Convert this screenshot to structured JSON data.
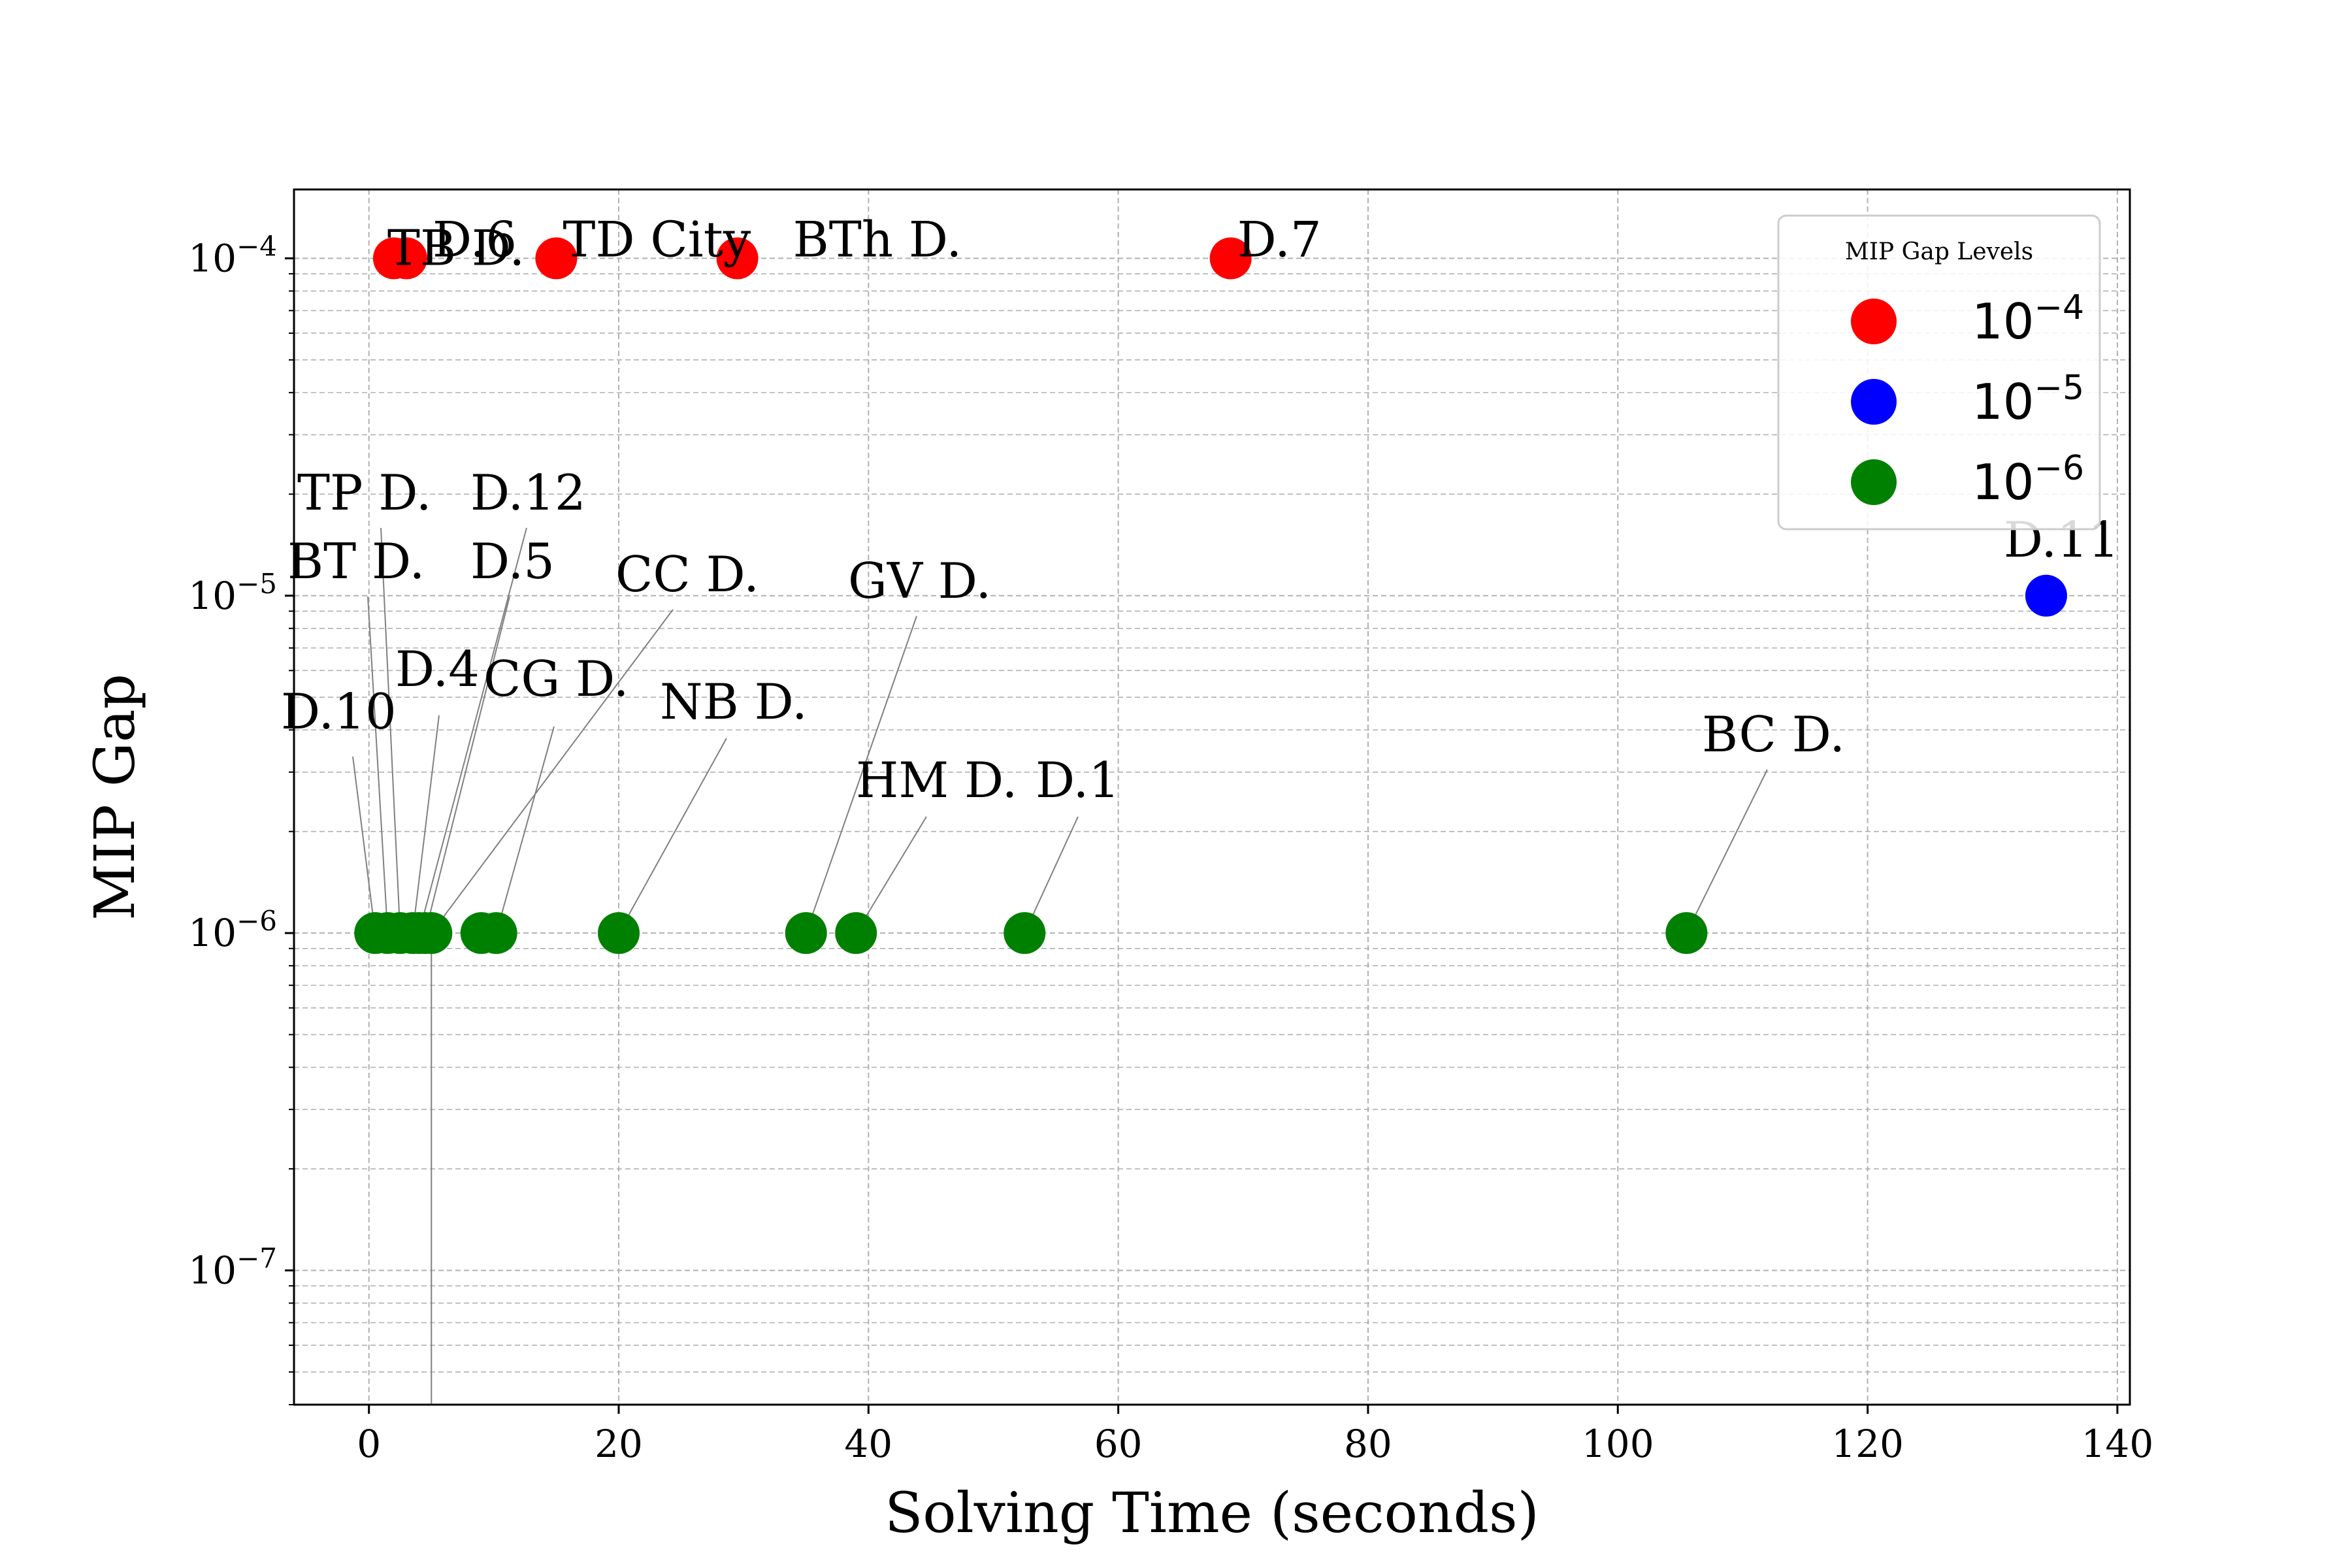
{
  "chart_data": {
    "type": "scatter",
    "xlabel": "Solving Time (seconds)",
    "ylabel": "MIP Gap",
    "y_scale": "log",
    "xlim": [
      -6,
      141
    ],
    "ylim": [
      4e-08,
      0.00016
    ],
    "x_ticks": [
      {
        "value": 0,
        "label": "0"
      },
      {
        "value": 20,
        "label": "20"
      },
      {
        "value": 40,
        "label": "40"
      },
      {
        "value": 60,
        "label": "60"
      },
      {
        "value": 80,
        "label": "80"
      },
      {
        "value": 100,
        "label": "100"
      },
      {
        "value": 120,
        "label": "120"
      },
      {
        "value": 140,
        "label": "140"
      }
    ],
    "y_ticks": [
      {
        "value": 1e-07,
        "base": "10",
        "exp": "−7"
      },
      {
        "value": 1e-06,
        "base": "10",
        "exp": "−6"
      },
      {
        "value": 1e-05,
        "base": "10",
        "exp": "−5"
      },
      {
        "value": 0.0001,
        "base": "10",
        "exp": "−4"
      }
    ],
    "grid": true,
    "legend": {
      "title": "MIP Gap Levels",
      "placement": "top-right",
      "entries": [
        {
          "base": "10",
          "exp": "−4",
          "color": "#ff0000"
        },
        {
          "base": "10",
          "exp": "−5",
          "color": "#0000ff"
        },
        {
          "base": "10",
          "exp": "−6",
          "color": "#008000"
        }
      ]
    },
    "points": [
      {
        "label": "TB D.",
        "x": 2.0,
        "y": 0.0001,
        "color": "#ff0000"
      },
      {
        "label": "D.6",
        "x": 3.0,
        "y": 0.0001,
        "color": "#ff0000"
      },
      {
        "label": "TD City",
        "x": 15.0,
        "y": 0.0001,
        "color": "#ff0000"
      },
      {
        "label": "BTh D.",
        "x": 29.5,
        "y": 0.0001,
        "color": "#ff0000"
      },
      {
        "label": "D.7",
        "x": 69.0,
        "y": 0.0001,
        "color": "#ff0000"
      },
      {
        "label": "D.11",
        "x": 134.3,
        "y": 1e-05,
        "color": "#0000ff"
      },
      {
        "label": "D.10",
        "x": 0.5,
        "y": 1e-06,
        "color": "#008000"
      },
      {
        "label": "BT D.",
        "x": 1.5,
        "y": 1e-06,
        "color": "#008000"
      },
      {
        "label": "TP D.",
        "x": 2.5,
        "y": 1e-06,
        "color": "#008000"
      },
      {
        "label": "D.4",
        "x": 3.5,
        "y": 1e-06,
        "color": "#008000"
      },
      {
        "label": "D.12",
        "x": 4.0,
        "y": 1e-06,
        "color": "#008000"
      },
      {
        "label": "D.5",
        "x": 4.5,
        "y": 1e-06,
        "color": "#008000"
      },
      {
        "label": "CC D.",
        "x": 5.0,
        "y": 1e-06,
        "color": "#008000"
      },
      {
        "label": "",
        "x": 9.0,
        "y": 1e-06,
        "color": "#008000"
      },
      {
        "label": "CG D.",
        "x": 10.2,
        "y": 1e-06,
        "color": "#008000"
      },
      {
        "label": "NB D.",
        "x": 20.0,
        "y": 1e-06,
        "color": "#008000"
      },
      {
        "label": "GV D.",
        "x": 35.0,
        "y": 1e-06,
        "color": "#008000"
      },
      {
        "label": "HM D.",
        "x": 39.0,
        "y": 1e-06,
        "color": "#008000"
      },
      {
        "label": "D.1",
        "x": 52.5,
        "y": 1e-06,
        "color": "#008000"
      },
      {
        "label": "BC D.",
        "x": 105.5,
        "y": 1e-06,
        "color": "#008000"
      }
    ]
  }
}
